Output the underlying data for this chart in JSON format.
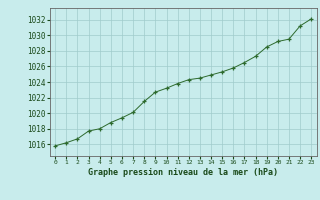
{
  "x": [
    0,
    1,
    2,
    3,
    4,
    5,
    6,
    7,
    8,
    9,
    10,
    11,
    12,
    13,
    14,
    15,
    16,
    17,
    18,
    19,
    20,
    21,
    22,
    23
  ],
  "y": [
    1015.8,
    1016.2,
    1016.7,
    1017.7,
    1018.0,
    1018.8,
    1019.4,
    1020.1,
    1021.5,
    1022.7,
    1023.2,
    1023.8,
    1024.3,
    1024.5,
    1024.9,
    1025.3,
    1025.8,
    1026.5,
    1027.3,
    1028.5,
    1029.2,
    1029.5,
    1031.2,
    1032.1
  ],
  "line_color": "#2d6a2d",
  "marker_color": "#2d6a2d",
  "bg_color": "#c8ecec",
  "plot_bg_color": "#c8ecec",
  "grid_color": "#a0cccc",
  "xlabel": "Graphe pression niveau de la mer (hPa)",
  "xlabel_color": "#1a4a1a",
  "tick_color": "#1a4a1a",
  "ylim": [
    1014.5,
    1033.5
  ],
  "yticks": [
    1016,
    1018,
    1020,
    1022,
    1024,
    1026,
    1028,
    1030,
    1032
  ],
  "xlim": [
    -0.5,
    23.5
  ],
  "xticks": [
    0,
    1,
    2,
    3,
    4,
    5,
    6,
    7,
    8,
    9,
    10,
    11,
    12,
    13,
    14,
    15,
    16,
    17,
    18,
    19,
    20,
    21,
    22,
    23
  ]
}
